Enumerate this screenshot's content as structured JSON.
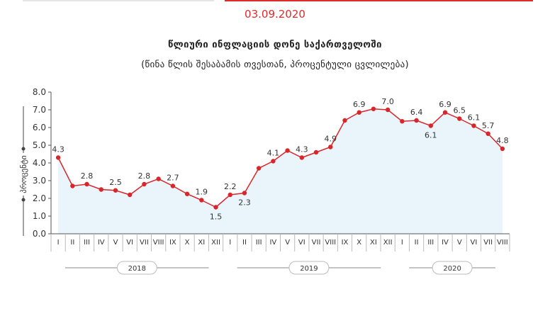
{
  "header": {
    "date": "03.09.2020",
    "title": "წლიური ინფლაციის დონე საქართველოში",
    "subtitle": "(წინა წლის შესაბამის თვესთან, პროცენტული ცვლილება)"
  },
  "colors": {
    "accent": "#e02b2b",
    "line": "#d9262b",
    "area": "#eaf4fb",
    "axis": "#555555",
    "grid": "#888888",
    "top_rule_left": "#e5e5e5",
    "top_rule_right": "#e02b2b"
  },
  "chart_data": {
    "type": "area",
    "title": "წლიური ინფლაციის დონე საქართველოში",
    "subtitle": "(წინა წლის შესაბამის თვესთან, პროცენტული ცვლილება)",
    "ylabel": "პროცენტი",
    "ylim": [
      0,
      8
    ],
    "yticks": [
      "0.0",
      "1.0",
      "2.0",
      "3.0",
      "4.0",
      "5.0",
      "6.0",
      "7.0",
      "8.0"
    ],
    "categories": [
      "I",
      "II",
      "III",
      "IV",
      "V",
      "VI",
      "VII",
      "VIII",
      "IX",
      "X",
      "XI",
      "XII",
      "I",
      "II",
      "III",
      "IV",
      "V",
      "VI",
      "VII",
      "VIII",
      "IX",
      "X",
      "XI",
      "XII",
      "I",
      "II",
      "III",
      "IV",
      "V",
      "VI",
      "VII",
      "VIII"
    ],
    "groups": [
      {
        "label": "2018",
        "start": 0,
        "count": 12
      },
      {
        "label": "2019",
        "start": 12,
        "count": 12
      },
      {
        "label": "2020",
        "start": 24,
        "count": 8
      }
    ],
    "series": [
      {
        "values": [
          4.3,
          2.7,
          2.8,
          2.5,
          2.45,
          2.2,
          2.8,
          3.1,
          2.7,
          2.25,
          1.9,
          1.5,
          2.2,
          2.3,
          3.7,
          4.1,
          4.7,
          4.3,
          4.6,
          4.9,
          6.4,
          6.85,
          7.05,
          7.0,
          6.35,
          6.4,
          6.1,
          6.85,
          6.5,
          6.1,
          5.65,
          4.8
        ]
      }
    ],
    "data_labels": [
      {
        "index": 0,
        "text": "4.3",
        "pos": "above"
      },
      {
        "index": 2,
        "text": "2.8",
        "pos": "above"
      },
      {
        "index": 4,
        "text": "2.5",
        "pos": "above"
      },
      {
        "index": 6,
        "text": "2.8",
        "pos": "above"
      },
      {
        "index": 8,
        "text": "2.7",
        "pos": "above"
      },
      {
        "index": 10,
        "text": "1.9",
        "pos": "above"
      },
      {
        "index": 11,
        "text": "1.5",
        "pos": "below"
      },
      {
        "index": 12,
        "text": "2.2",
        "pos": "above"
      },
      {
        "index": 13,
        "text": "2.3",
        "pos": "below"
      },
      {
        "index": 15,
        "text": "4.1",
        "pos": "above"
      },
      {
        "index": 17,
        "text": "4.3",
        "pos": "above"
      },
      {
        "index": 19,
        "text": "4.9",
        "pos": "above"
      },
      {
        "index": 21,
        "text": "6.9",
        "pos": "above"
      },
      {
        "index": 23,
        "text": "7.0",
        "pos": "above"
      },
      {
        "index": 25,
        "text": "6.4",
        "pos": "above"
      },
      {
        "index": 26,
        "text": "6.1",
        "pos": "below"
      },
      {
        "index": 27,
        "text": "6.9",
        "pos": "above"
      },
      {
        "index": 28,
        "text": "6.5",
        "pos": "above"
      },
      {
        "index": 29,
        "text": "6.1",
        "pos": "above"
      },
      {
        "index": 30,
        "text": "5.7",
        "pos": "above"
      },
      {
        "index": 31,
        "text": "4.8",
        "pos": "above"
      }
    ],
    "grid": false,
    "legend": "none"
  }
}
